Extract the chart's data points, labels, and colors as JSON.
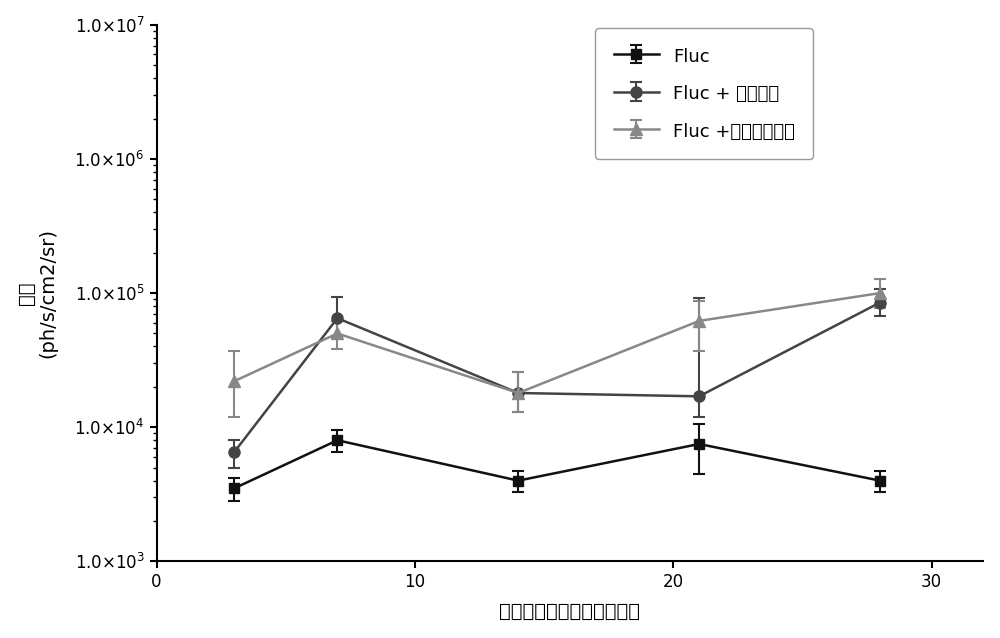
{
  "x": [
    3,
    7,
    14,
    21,
    28
  ],
  "series": [
    {
      "label": "Fluc",
      "color": "#111111",
      "marker": "s",
      "markersize": 7,
      "y": [
        3500,
        8000,
        4000,
        7500,
        4000
      ],
      "yerr_low": [
        700,
        1500,
        700,
        3000,
        700
      ],
      "yerr_high": [
        700,
        1500,
        700,
        3000,
        700
      ]
    },
    {
      "label": "Fluc + 氯膛酸盐",
      "color": "#444444",
      "marker": "o",
      "markersize": 8,
      "y": [
        6500,
        65000,
        18000,
        17000,
        85000
      ],
      "yerr_low": [
        1500,
        18000,
        5000,
        5000,
        18000
      ],
      "yerr_high": [
        1500,
        28000,
        8000,
        75000,
        22000
      ]
    },
    {
      "label": "Fluc +氟羟脱氢皮醇",
      "color": "#888888",
      "marker": "^",
      "markersize": 8,
      "y": [
        22000,
        50000,
        18000,
        62000,
        100000
      ],
      "yerr_low": [
        10000,
        12000,
        5000,
        25000,
        22000
      ],
      "yerr_high": [
        15000,
        12000,
        8000,
        25000,
        28000
      ]
    }
  ],
  "xlabel": "时间（注射载体后的天数）",
  "ylabel_line1": "发光",
  "ylabel_line2": "(ph/s/cm2/sr)",
  "xlim": [
    1,
    32
  ],
  "ylim_log": [
    1000.0,
    10000000.0
  ],
  "xticks": [
    0,
    10,
    20,
    30
  ],
  "ytick_values": [
    1000.0,
    10000.0,
    100000.0,
    1000000.0,
    10000000.0
  ],
  "background_color": "#ffffff",
  "legend_fontsize": 13,
  "axis_label_fontsize": 14,
  "tick_fontsize": 12,
  "linewidth": 1.8,
  "figsize": [
    10.0,
    6.38
  ],
  "dpi": 100
}
